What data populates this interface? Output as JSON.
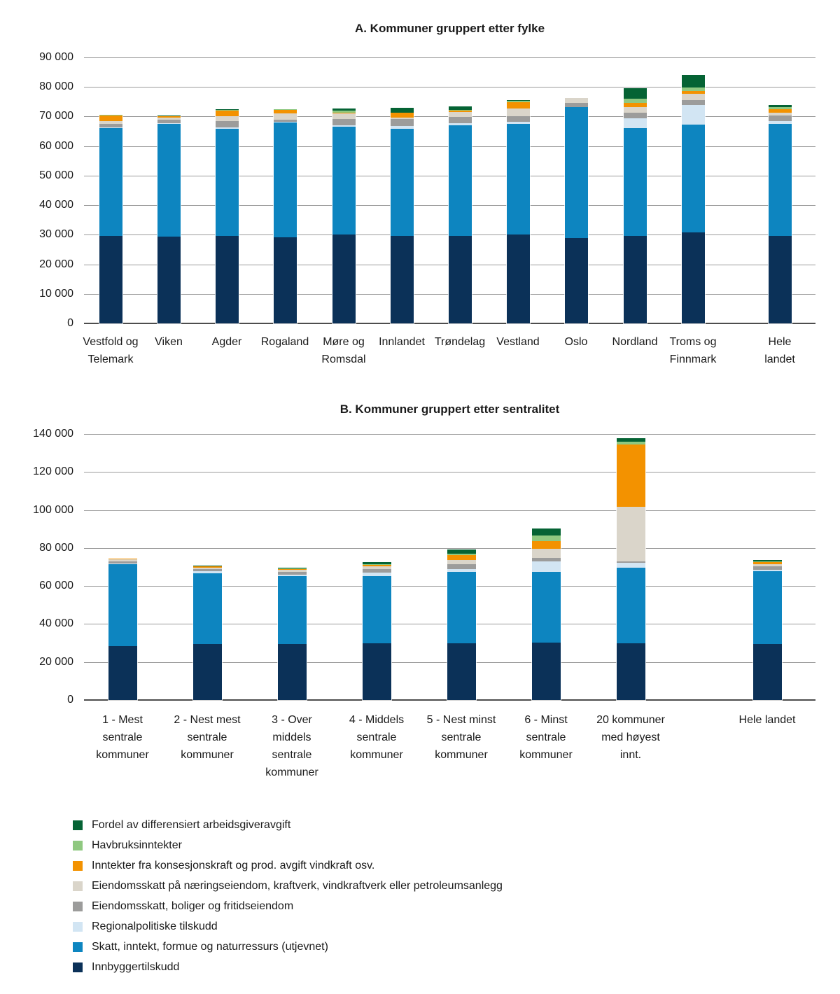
{
  "chart_data": [
    {
      "type": "bar",
      "subtype": "stacked",
      "title": "A. Kommuner gruppert etter fylke",
      "ylim": [
        0,
        90000
      ],
      "ytick_step": 10000,
      "ytick_labels": [
        "90 000",
        "80 000",
        "70 000",
        "60 000",
        "50 000",
        "40 000",
        "30 000",
        "20 000",
        "10 000",
        "0"
      ],
      "grid": true,
      "categories": [
        "Vestfold og Telemark",
        "Viken",
        "Agder",
        "Rogaland",
        "Møre og Romsdal",
        "Innlandet",
        "Trøndelag",
        "Vestland",
        "Oslo",
        "Nordland",
        "Troms og Finnmark",
        "Hele landet"
      ],
      "category_lines": [
        [
          "Vestfold og",
          "Telemark"
        ],
        [
          "Viken"
        ],
        [
          "Agder"
        ],
        [
          "Rogaland"
        ],
        [
          "Møre og",
          "Romsdal"
        ],
        [
          "Innlandet"
        ],
        [
          "Trøndelag"
        ],
        [
          "Vestland"
        ],
        [
          "Oslo"
        ],
        [
          "Nordland"
        ],
        [
          "Troms og",
          "Finnmark"
        ],
        [
          "Hele",
          "landet"
        ]
      ],
      "series": [
        {
          "name": "Innbyggertilskudd",
          "color": "#0B3158",
          "values": [
            29500,
            29300,
            29500,
            29200,
            30100,
            29500,
            29700,
            30100,
            28900,
            29500,
            30800,
            29600
          ]
        },
        {
          "name": "Skatt, inntekt, formue og naturressurs (utjevnet)",
          "color": "#0D85C0",
          "values": [
            36500,
            38300,
            36300,
            38800,
            36400,
            36300,
            37300,
            37300,
            44200,
            36600,
            36500,
            38000
          ]
        },
        {
          "name": "Regionalpolitiske tilskudd",
          "color": "#D2E5F3",
          "values": [
            300,
            100,
            400,
            200,
            500,
            1000,
            800,
            900,
            0,
            3200,
            6600,
            900
          ]
        },
        {
          "name": "Eiendomsskatt, boliger og fritidseiendom",
          "color": "#9C9C9B",
          "values": [
            1200,
            1300,
            2300,
            700,
            2100,
            2400,
            2000,
            1700,
            1400,
            2000,
            1600,
            1800
          ]
        },
        {
          "name": "Eiendomsskatt på næringseiendom, kraftverk, vindkraftverk eller petroleumsanlegg",
          "color": "#DAD5CA",
          "values": [
            1000,
            700,
            1700,
            2200,
            1900,
            400,
            1700,
            2700,
            1700,
            2000,
            2200,
            1100
          ]
        },
        {
          "name": "Inntekter fra konsesjonskraft og prod. avgift vindkraft osv.",
          "color": "#F39200",
          "values": [
            1900,
            400,
            1900,
            1200,
            400,
            1700,
            400,
            2200,
            0,
            1400,
            1000,
            1100
          ]
        },
        {
          "name": "Havbruksinntekter",
          "color": "#8FC880",
          "values": [
            100,
            100,
            200,
            200,
            500,
            100,
            400,
            400,
            0,
            1300,
            1000,
            600
          ]
        },
        {
          "name": "Fordel av differensiert arbeidsgiveravgift",
          "color": "#056334",
          "values": [
            0,
            100,
            100,
            0,
            700,
            1500,
            1200,
            300,
            0,
            3500,
            4300,
            700
          ]
        }
      ]
    },
    {
      "type": "bar",
      "subtype": "stacked",
      "title": "B. Kommuner gruppert etter sentralitet",
      "ylim": [
        0,
        140000
      ],
      "ytick_step": 20000,
      "ytick_labels": [
        "140 000",
        "120 000",
        "100 000",
        "80 000",
        "60 000",
        "40 000",
        "20 000",
        "0"
      ],
      "grid": true,
      "categories": [
        "1 - Mest sentrale kommuner",
        "2 - Nest mest sentrale kommuner",
        "3 - Over middels sentrale kommuner",
        "4 - Middels sentrale kommuner",
        "5 - Nest minst sentrale kommuner",
        "6 -  Minst sentrale kommuner",
        "20 kommuner med høyest innt.",
        "Hele landet"
      ],
      "category_lines": [
        [
          "1 - Mest",
          "sentrale",
          "kommuner"
        ],
        [
          "2 - Nest mest",
          "sentrale",
          "kommuner"
        ],
        [
          "3 - Over",
          "middels",
          "sentrale",
          "kommuner"
        ],
        [
          "4 - Middels",
          "sentrale",
          "kommuner"
        ],
        [
          "5 - Nest minst",
          "sentrale",
          "kommuner"
        ],
        [
          "6 -  Minst",
          "sentrale",
          "kommuner"
        ],
        [
          "20 kommuner",
          "med høyest",
          "innt."
        ],
        [
          "Hele landet"
        ]
      ],
      "series": [
        {
          "name": "Innbyggertilskudd",
          "color": "#0B3158",
          "values": [
            28500,
            29300,
            29600,
            30000,
            30000,
            30300,
            30000,
            29600
          ]
        },
        {
          "name": "Skatt, inntekt, formue og naturressurs (utjevnet)",
          "color": "#0D85C0",
          "values": [
            42900,
            37300,
            35700,
            35300,
            37300,
            37000,
            39600,
            38000
          ]
        },
        {
          "name": "Regionalpolitiske tilskudd",
          "color": "#D2E5F3",
          "values": [
            400,
            1000,
            800,
            1600,
            1700,
            5800,
            2500,
            900
          ]
        },
        {
          "name": "Eiendomsskatt, boliger og fritidseiendom",
          "color": "#9C9C9B",
          "values": [
            1200,
            1300,
            1300,
            2100,
            2300,
            1600,
            900,
            1800
          ]
        },
        {
          "name": "Eiendomsskatt på næringseiendom, kraftverk, vindkraftverk eller petroleumsanlegg",
          "color": "#DAD5CA",
          "values": [
            1000,
            900,
            1200,
            1200,
            2400,
            4800,
            28500,
            1100
          ]
        },
        {
          "name": "Inntekter fra konsesjonskraft og prod. avgift vindkraft osv.",
          "color": "#F39200",
          "values": [
            600,
            600,
            300,
            800,
            2700,
            4000,
            33000,
            1100
          ]
        },
        {
          "name": "Havbruksinntekter",
          "color": "#8FC880",
          "values": [
            0,
            100,
            200,
            300,
            700,
            3000,
            1300,
            600
          ]
        },
        {
          "name": "Fordel av differensiert arbeidsgiveravgift",
          "color": "#056334",
          "values": [
            0,
            100,
            500,
            1300,
            2300,
            3900,
            2100,
            700
          ]
        }
      ]
    }
  ],
  "legend": {
    "items": [
      {
        "label": "Fordel av differensiert arbeidsgiveravgift",
        "color": "#056334"
      },
      {
        "label": "Havbruksinntekter",
        "color": "#8FC880"
      },
      {
        "label": "Inntekter fra konsesjonskraft og prod. avgift vindkraft osv.",
        "color": "#F39200"
      },
      {
        "label": "Eiendomsskatt på næringseiendom, kraftverk, vindkraftverk eller petroleumsanlegg",
        "color": "#DAD5CA"
      },
      {
        "label": "Eiendomsskatt, boliger og fritidseiendom",
        "color": "#9C9C9B"
      },
      {
        "label": "Regionalpolitiske tilskudd",
        "color": "#D2E5F3"
      },
      {
        "label": "Skatt, inntekt, formue og naturressurs (utjevnet)",
        "color": "#0D85C0"
      },
      {
        "label": "Innbyggertilskudd",
        "color": "#0B3158"
      }
    ]
  }
}
